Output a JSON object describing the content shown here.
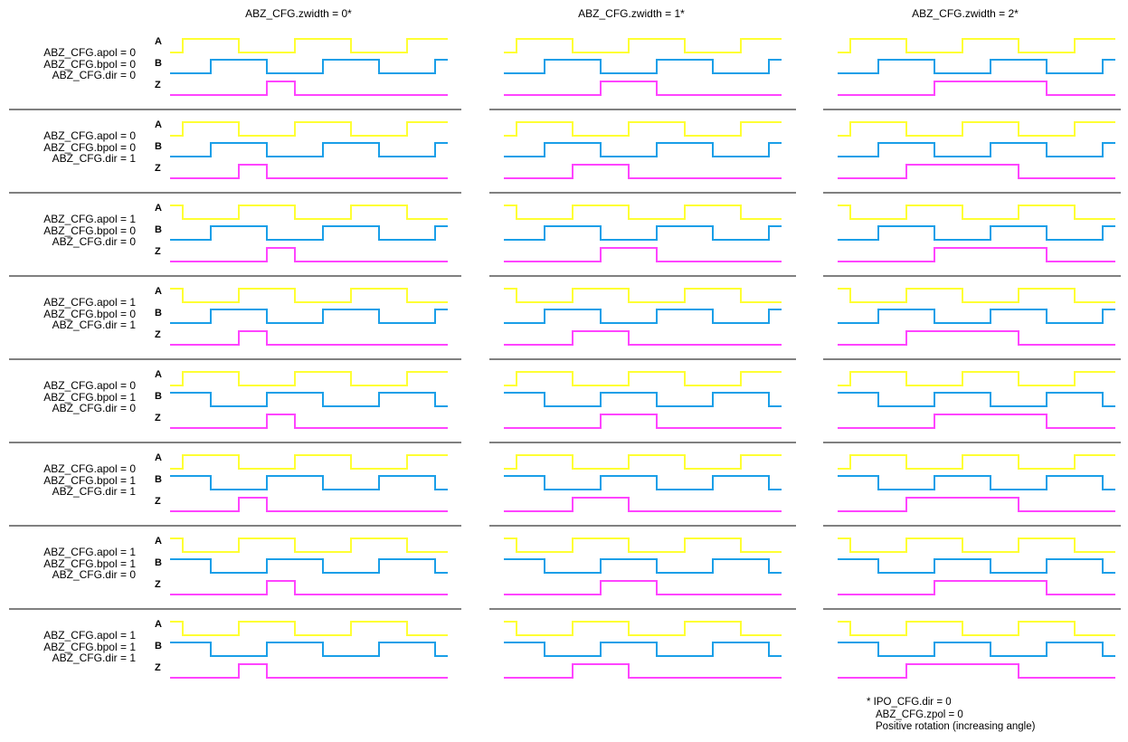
{
  "columns": [
    {
      "title": "ABZ_CFG.zwidth = 0*",
      "zwidth": 0
    },
    {
      "title": "ABZ_CFG.zwidth = 1*",
      "zwidth": 1
    },
    {
      "title": "ABZ_CFG.zwidth = 2*",
      "zwidth": 2
    }
  ],
  "signal_labels": {
    "a": "A",
    "b": "B",
    "z": "Z"
  },
  "rows": [
    {
      "apol": "ABZ_CFG.apol = 0",
      "bpol": "ABZ_CFG.bpol = 0",
      "dir": "ABZ_CFG.dir = 0",
      "a_inv": 0,
      "b_inv": 0,
      "dir_val": 0
    },
    {
      "apol": "ABZ_CFG.apol = 0",
      "bpol": "ABZ_CFG.bpol = 0",
      "dir": "ABZ_CFG.dir = 1",
      "a_inv": 0,
      "b_inv": 0,
      "dir_val": 1
    },
    {
      "apol": "ABZ_CFG.apol = 1",
      "bpol": "ABZ_CFG.bpol = 0",
      "dir": "ABZ_CFG.dir = 0",
      "a_inv": 1,
      "b_inv": 0,
      "dir_val": 0
    },
    {
      "apol": "ABZ_CFG.apol = 1",
      "bpol": "ABZ_CFG.bpol = 0",
      "dir": "ABZ_CFG.dir = 1",
      "a_inv": 1,
      "b_inv": 0,
      "dir_val": 1
    },
    {
      "apol": "ABZ_CFG.apol = 0",
      "bpol": "ABZ_CFG.bpol = 1",
      "dir": "ABZ_CFG.dir = 0",
      "a_inv": 0,
      "b_inv": 1,
      "dir_val": 0
    },
    {
      "apol": "ABZ_CFG.apol = 0",
      "bpol": "ABZ_CFG.bpol = 1",
      "dir": "ABZ_CFG.dir = 1",
      "a_inv": 0,
      "b_inv": 1,
      "dir_val": 1
    },
    {
      "apol": "ABZ_CFG.apol = 1",
      "bpol": "ABZ_CFG.bpol = 1",
      "dir": "ABZ_CFG.dir = 0",
      "a_inv": 1,
      "b_inv": 1,
      "dir_val": 0
    },
    {
      "apol": "ABZ_CFG.apol = 1",
      "bpol": "ABZ_CFG.bpol = 1",
      "dir": "ABZ_CFG.dir = 1",
      "a_inv": 1,
      "b_inv": 1,
      "dir_val": 1
    }
  ],
  "colors": {
    "a": "#ffff33",
    "b": "#1a9fe8",
    "z": "#ff44ff",
    "separator": "#000000"
  },
  "footnote": {
    "line1": "* IPO_CFG.dir = 0",
    "line2": "ABZ_CFG.zpol = 0",
    "line3": "Positive rotation (increasing angle)"
  }
}
